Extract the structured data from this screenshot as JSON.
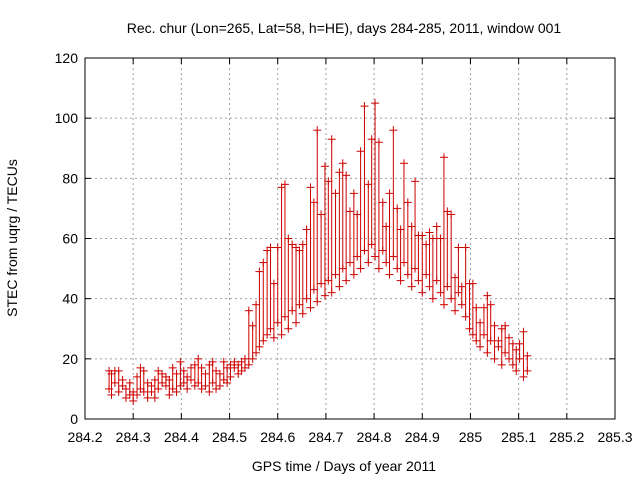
{
  "chart_data": {
    "type": "scatter",
    "title": "Rec. chur (Lon=265, Lat=58, h=HE), days 284-285, 2011, window 001",
    "xlabel": "GPS time / Days of year 2011",
    "ylabel": "STEC from uqrg / TECUs",
    "xlim": [
      284.2,
      285.3
    ],
    "ylim": [
      0,
      120
    ],
    "x_ticks": [
      284.2,
      284.3,
      284.4,
      284.5,
      284.6,
      284.7,
      284.8,
      284.9,
      285.0,
      285.1,
      285.2,
      285.3
    ],
    "x_tick_labels": [
      "284.2",
      "284.3",
      "284.4",
      "284.5",
      "284.6",
      "284.7",
      "284.8",
      "284.9",
      "285",
      "285.1",
      "285.2",
      "285.3"
    ],
    "y_ticks": [
      0,
      20,
      40,
      60,
      80,
      100,
      120
    ],
    "y_tick_labels": [
      "0",
      "20",
      "40",
      "60",
      "80",
      "100",
      "120"
    ],
    "grid": true,
    "series_color": "#cc0000",
    "series": [
      {
        "points": [
          [
            284.25,
            10,
            16
          ],
          [
            284.255,
            8,
            15
          ],
          [
            284.262,
            12,
            16
          ],
          [
            284.27,
            9,
            16
          ],
          [
            284.278,
            11,
            13
          ],
          [
            284.285,
            7,
            10
          ],
          [
            284.293,
            8,
            12
          ],
          [
            284.3,
            6,
            9
          ],
          [
            284.308,
            8,
            14
          ],
          [
            284.315,
            10,
            17
          ],
          [
            284.322,
            9,
            16
          ],
          [
            284.33,
            7,
            12
          ],
          [
            284.338,
            9,
            11
          ],
          [
            284.345,
            7,
            13
          ],
          [
            284.352,
            10,
            16
          ],
          [
            284.36,
            12,
            15
          ],
          [
            284.368,
            11,
            14
          ],
          [
            284.375,
            8,
            13
          ],
          [
            284.382,
            10,
            17
          ],
          [
            284.39,
            9,
            15
          ],
          [
            284.398,
            11,
            19
          ],
          [
            284.405,
            12,
            16
          ],
          [
            284.412,
            10,
            14
          ],
          [
            284.42,
            13,
            17
          ],
          [
            284.428,
            11,
            18
          ],
          [
            284.435,
            12,
            20
          ],
          [
            284.442,
            10,
            17
          ],
          [
            284.45,
            11,
            15
          ],
          [
            284.458,
            9,
            18
          ],
          [
            284.465,
            12,
            19
          ],
          [
            284.472,
            10,
            16
          ],
          [
            284.48,
            11,
            15
          ],
          [
            284.488,
            13,
            19
          ],
          [
            284.495,
            12,
            17
          ],
          [
            284.502,
            14,
            18
          ],
          [
            284.51,
            17,
            19
          ],
          [
            284.518,
            15,
            18
          ],
          [
            284.525,
            16,
            19
          ],
          [
            284.532,
            17,
            20
          ],
          [
            284.54,
            18,
            36
          ],
          [
            284.548,
            20,
            31
          ],
          [
            284.555,
            22,
            38
          ],
          [
            284.562,
            24,
            49
          ],
          [
            284.57,
            26,
            52
          ],
          [
            284.578,
            28,
            56
          ],
          [
            284.585,
            30,
            57
          ],
          [
            284.592,
            27,
            45
          ],
          [
            284.6,
            32,
            57
          ],
          [
            284.608,
            28,
            77
          ],
          [
            284.615,
            34,
            78
          ],
          [
            284.622,
            30,
            60
          ],
          [
            284.63,
            36,
            58
          ],
          [
            284.638,
            32,
            57
          ],
          [
            284.645,
            38,
            56
          ],
          [
            284.652,
            35,
            58
          ],
          [
            284.66,
            40,
            63
          ],
          [
            284.668,
            37,
            77
          ],
          [
            284.675,
            43,
            72
          ],
          [
            284.682,
            39,
            96
          ],
          [
            284.69,
            45,
            68
          ],
          [
            284.698,
            41,
            84
          ],
          [
            284.705,
            46,
            79
          ],
          [
            284.712,
            42,
            93
          ],
          [
            284.72,
            48,
            75
          ],
          [
            284.728,
            44,
            82
          ],
          [
            284.735,
            50,
            85
          ],
          [
            284.742,
            46,
            81
          ],
          [
            284.75,
            52,
            69
          ],
          [
            284.758,
            48,
            75
          ],
          [
            284.765,
            54,
            68
          ],
          [
            284.772,
            50,
            89
          ],
          [
            284.78,
            56,
            104
          ],
          [
            284.788,
            52,
            78
          ],
          [
            284.795,
            58,
            93
          ],
          [
            284.802,
            54,
            105
          ],
          [
            284.81,
            50,
            92
          ],
          [
            284.818,
            56,
            72
          ],
          [
            284.825,
            52,
            64
          ],
          [
            284.832,
            48,
            75
          ],
          [
            284.84,
            54,
            96
          ],
          [
            284.848,
            50,
            70
          ],
          [
            284.855,
            46,
            63
          ],
          [
            284.862,
            52,
            85
          ],
          [
            284.87,
            48,
            72
          ],
          [
            284.878,
            44,
            64
          ],
          [
            284.885,
            50,
            79
          ],
          [
            284.892,
            46,
            61
          ],
          [
            284.9,
            42,
            61
          ],
          [
            284.908,
            48,
            58
          ],
          [
            284.915,
            44,
            62
          ],
          [
            284.922,
            40,
            60
          ],
          [
            284.93,
            46,
            64
          ],
          [
            284.938,
            42,
            60
          ],
          [
            284.945,
            38,
            87
          ],
          [
            284.952,
            44,
            69
          ],
          [
            284.96,
            40,
            68
          ],
          [
            284.968,
            36,
            47
          ],
          [
            284.975,
            42,
            57
          ],
          [
            284.982,
            38,
            44
          ],
          [
            284.99,
            34,
            57
          ],
          [
            284.998,
            30,
            45
          ],
          [
            285.005,
            28,
            45
          ],
          [
            285.012,
            26,
            37
          ],
          [
            285.02,
            24,
            32
          ],
          [
            285.028,
            28,
            37
          ],
          [
            285.035,
            22,
            41
          ],
          [
            285.042,
            26,
            38
          ],
          [
            285.05,
            20,
            31
          ],
          [
            285.058,
            24,
            26
          ],
          [
            285.065,
            18,
            30
          ],
          [
            285.072,
            22,
            31
          ],
          [
            285.08,
            20,
            27
          ],
          [
            285.088,
            18,
            25
          ],
          [
            285.095,
            16,
            23
          ],
          [
            285.102,
            20,
            25
          ],
          [
            285.11,
            14,
            29
          ],
          [
            285.118,
            16,
            21
          ]
        ]
      }
    ]
  }
}
